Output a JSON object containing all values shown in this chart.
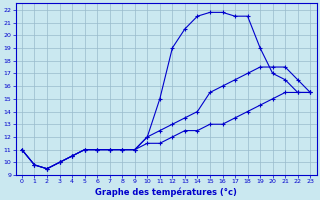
{
  "title": "Graphe des températures (°c)",
  "bg_color": "#cae8f0",
  "grid_color": "#99bbcc",
  "line_color": "#0000cc",
  "xlim": [
    -0.5,
    23.5
  ],
  "ylim": [
    9,
    22.5
  ],
  "xticks": [
    0,
    1,
    2,
    3,
    4,
    5,
    6,
    7,
    8,
    9,
    10,
    11,
    12,
    13,
    14,
    15,
    16,
    17,
    18,
    19,
    20,
    21,
    22,
    23
  ],
  "yticks": [
    9,
    10,
    11,
    12,
    13,
    14,
    15,
    16,
    17,
    18,
    19,
    20,
    21,
    22
  ],
  "series": [
    [
      11.0,
      9.8,
      9.5,
      10.0,
      10.5,
      11.0,
      11.0,
      11.0,
      11.0,
      11.0,
      11.5,
      11.5,
      12.0,
      12.5,
      12.5,
      13.0,
      13.0,
      13.5,
      14.0,
      14.5,
      15.0,
      15.5,
      15.5,
      15.5
    ],
    [
      11.0,
      9.8,
      9.5,
      10.0,
      10.5,
      11.0,
      11.0,
      11.0,
      11.0,
      11.0,
      12.0,
      12.5,
      13.0,
      13.5,
      14.0,
      15.5,
      16.0,
      16.5,
      17.0,
      17.5,
      17.5,
      17.5,
      16.5,
      15.5
    ],
    [
      11.0,
      9.8,
      9.5,
      10.0,
      10.5,
      11.0,
      11.0,
      11.0,
      11.0,
      11.0,
      12.0,
      15.0,
      19.0,
      20.5,
      21.5,
      21.8,
      21.8,
      21.5,
      21.5,
      19.0,
      17.0,
      16.5,
      15.5,
      15.5
    ]
  ]
}
